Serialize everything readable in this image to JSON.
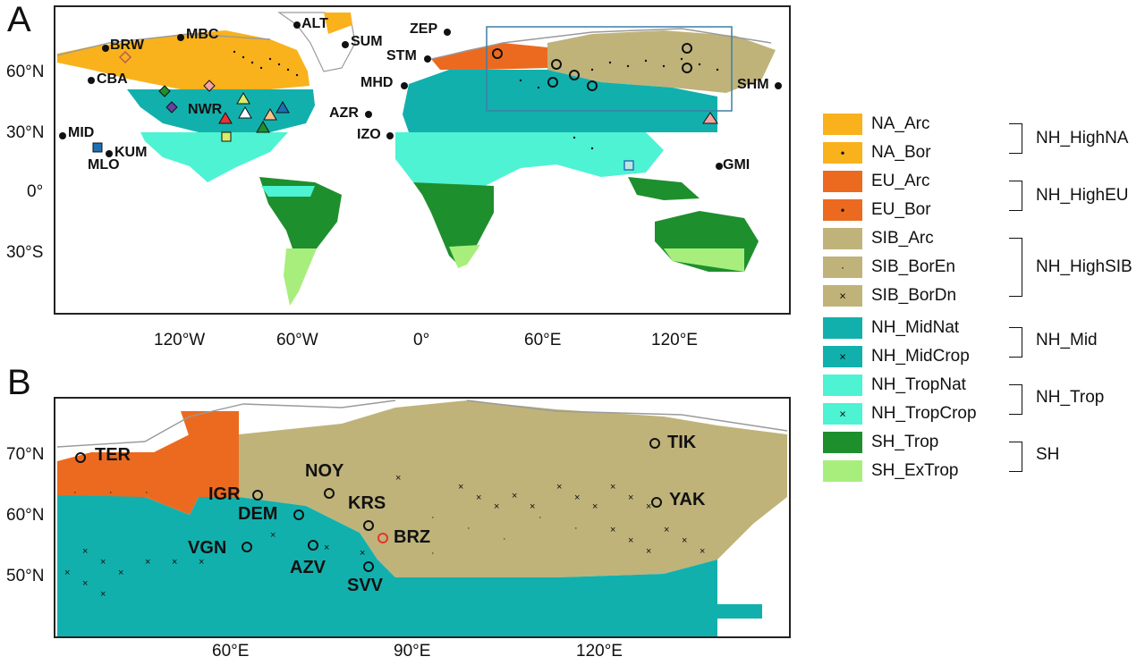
{
  "panels": {
    "a": {
      "letter": "A",
      "lat_ticks": [
        "60°N",
        "30°N",
        "0°",
        "30°S"
      ],
      "lon_ticks": [
        "120°W",
        "60°W",
        "0°",
        "60°E",
        "120°E"
      ],
      "stations": [
        "BRW",
        "MBC",
        "ALT",
        "SUM",
        "ZEP",
        "STM",
        "MHD",
        "CBA",
        "NWR",
        "AZR",
        "MID",
        "IZO",
        "KUM",
        "MLO",
        "SHM",
        "GMI"
      ]
    },
    "b": {
      "letter": "B",
      "lat_ticks": [
        "70°N",
        "60°N",
        "50°N"
      ],
      "lon_ticks": [
        "60°E",
        "90°E",
        "120°E"
      ],
      "stations": [
        "TER",
        "TIK",
        "NOY",
        "IGR",
        "KRS",
        "YAK",
        "DEM",
        "VGN",
        "BRZ",
        "AZV",
        "SVV"
      ]
    }
  },
  "legend": {
    "items": [
      {
        "label": "NA_Arc",
        "color": "#f9b21c",
        "marker": ""
      },
      {
        "label": "NA_Bor",
        "color": "#f9b21c",
        "marker": "•"
      },
      {
        "label": "EU_Arc",
        "color": "#ec6a1f",
        "marker": ""
      },
      {
        "label": "EU_Bor",
        "color": "#ec6a1f",
        "marker": "•"
      },
      {
        "label": "SIB_Arc",
        "color": "#bfb37a",
        "marker": ""
      },
      {
        "label": "SIB_BorEn",
        "color": "#bfb37a",
        "marker": "·"
      },
      {
        "label": "SIB_BorDn",
        "color": "#bfb37a",
        "marker": "×"
      },
      {
        "label": "NH_MidNat",
        "color": "#12b0ad",
        "marker": ""
      },
      {
        "label": "NH_MidCrop",
        "color": "#12b0ad",
        "marker": "×"
      },
      {
        "label": "NH_TropNat",
        "color": "#4df3d3",
        "marker": ""
      },
      {
        "label": "NH_TropCrop",
        "color": "#4df3d3",
        "marker": "×"
      },
      {
        "label": "SH_Trop",
        "color": "#1e8f2d",
        "marker": ""
      },
      {
        "label": "SH_ExTrop",
        "color": "#a8ee7c",
        "marker": ""
      }
    ],
    "groups": [
      "NH_HighNA",
      "NH_HighEU",
      "NH_HighSIB",
      "NH_Mid",
      "NH_Trop",
      "SH"
    ]
  }
}
